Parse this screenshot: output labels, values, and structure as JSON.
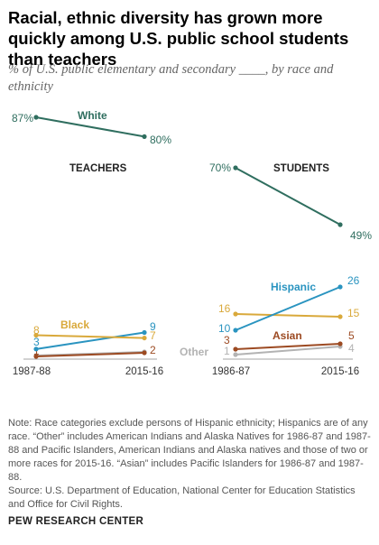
{
  "title": "Racial, ethnic diversity has grown more quickly among U.S. public school students than teachers",
  "subtitle": "% of U.S. public elementary and secondary ____, by race and ethnicity",
  "note": "Note: Race categories exclude persons of Hispanic ethnicity; Hispanics are of any race. “Other” includes American Indians and Alaska Natives for 1986-87 and 1987-88 and Pacific Islanders, American Indians and Alaska natives and those of two or more races for 2015-16. “Asian” includes Pacific Islanders for 1986-87 and 1987-88.",
  "source": "Source: U.S. Department of Education, National Center for Education Statistics and Office for Civil Rights.",
  "org": "PEW RESEARCH CENTER",
  "colors": {
    "White": "#2f6e5f",
    "Hispanic": "#2a94c0",
    "Black": "#d9a93b",
    "Asian": "#9c4a22",
    "Other": "#b3b3b3"
  },
  "chart_data": [
    {
      "type": "line",
      "title": "TEACHERS",
      "x": [
        "1987-88",
        "2015-16"
      ],
      "series": [
        {
          "name": "White",
          "values": [
            87,
            80
          ]
        },
        {
          "name": "Black",
          "values": [
            8,
            7
          ]
        },
        {
          "name": "Hispanic",
          "values": [
            3,
            9
          ]
        },
        {
          "name": "",
          "values": [
            1,
            2
          ]
        },
        {
          "name": "",
          "values": [
            1,
            2
          ]
        }
      ]
    },
    {
      "type": "line",
      "title": "STUDENTS",
      "x": [
        "1986-87",
        "2015-16"
      ],
      "series": [
        {
          "name": "White",
          "values": [
            70,
            49
          ]
        },
        {
          "name": "Hispanic",
          "values": [
            10,
            26
          ]
        },
        {
          "name": "Black",
          "values": [
            16,
            15
          ]
        },
        {
          "name": "Asian",
          "values": [
            3,
            5
          ]
        },
        {
          "name": "Other",
          "values": [
            1,
            4
          ]
        }
      ]
    }
  ]
}
